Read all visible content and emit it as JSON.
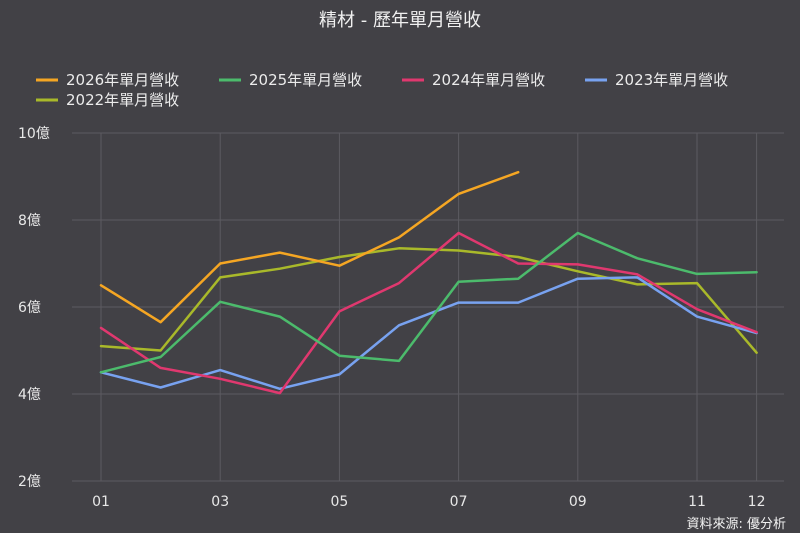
{
  "chart_data": {
    "type": "line",
    "title": "精材 - 歷年單月營收",
    "categories": [
      "01",
      "02",
      "03",
      "04",
      "05",
      "06",
      "07",
      "08",
      "09",
      "10",
      "11",
      "12"
    ],
    "x_tick_labels": [
      "01",
      "",
      "03",
      "",
      "05",
      "",
      "07",
      "",
      "09",
      "",
      "11",
      "12"
    ],
    "ylim": [
      2,
      10
    ],
    "y_ticks": [
      {
        "value": 10,
        "label": "10億"
      },
      {
        "value": 8,
        "label": "8億"
      },
      {
        "value": 6,
        "label": "6億"
      },
      {
        "value": 4,
        "label": "4億"
      },
      {
        "value": 2,
        "label": "2億"
      }
    ],
    "grid": true,
    "legend_position": "top",
    "series": [
      {
        "name": "2026年單月營收",
        "color": "#f5a623",
        "values": [
          6.5,
          5.65,
          7.0,
          7.25,
          6.95,
          7.6,
          8.6,
          9.1,
          null,
          null,
          null,
          null
        ]
      },
      {
        "name": "2025年單月營收",
        "color": "#4cbb6c",
        "values": [
          4.5,
          4.85,
          6.12,
          5.78,
          4.88,
          4.76,
          6.58,
          6.65,
          7.7,
          7.12,
          6.76,
          6.8
        ]
      },
      {
        "name": "2024年單月營收",
        "color": "#e0386f",
        "values": [
          5.52,
          4.6,
          4.35,
          4.02,
          5.9,
          6.55,
          7.7,
          7.0,
          6.98,
          6.75,
          5.95,
          5.42
        ]
      },
      {
        "name": "2023年單月營收",
        "color": "#78a2f0",
        "values": [
          4.5,
          4.15,
          4.55,
          4.12,
          4.45,
          5.58,
          6.1,
          6.1,
          6.65,
          6.68,
          5.78,
          5.4
        ]
      },
      {
        "name": "2022年單月營收",
        "color": "#a9b92a",
        "values": [
          5.1,
          5.0,
          6.68,
          6.88,
          7.15,
          7.35,
          7.3,
          7.15,
          6.82,
          6.52,
          6.55,
          4.95
        ]
      }
    ]
  },
  "source": "資料來源: 優分析"
}
